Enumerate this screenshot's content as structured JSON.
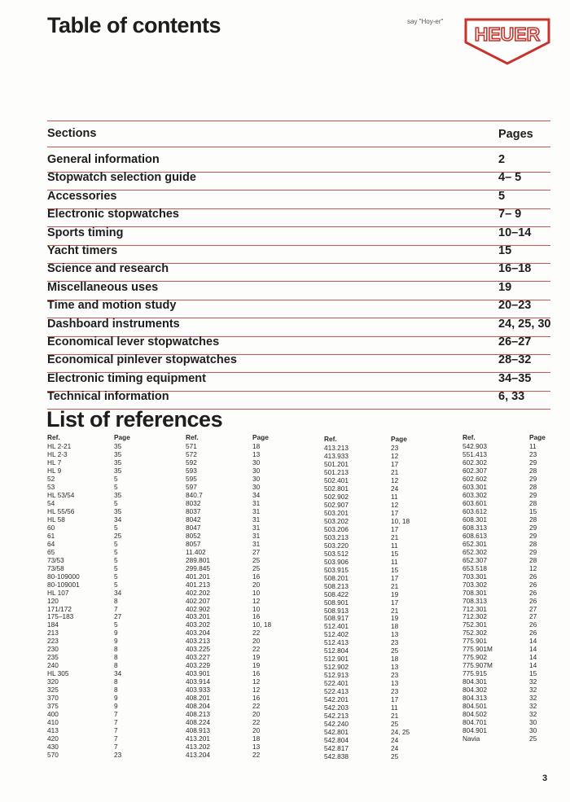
{
  "header": {
    "title": "Table of contents",
    "tagline": "say \"Hoy-er\"",
    "logo": "HEUER"
  },
  "sections": {
    "heading": "Sections",
    "pages_heading": "Pages",
    "rows": [
      [
        "General information",
        "2"
      ],
      [
        "Stopwatch selection guide",
        "4– 5"
      ],
      [
        "Accessories",
        "5"
      ],
      [
        "Electronic stopwatches",
        "7– 9"
      ],
      [
        "Sports timing",
        "10–14"
      ],
      [
        "Yacht timers",
        "15"
      ],
      [
        "Science and research",
        "16–18"
      ],
      [
        "Miscellaneous uses",
        "19"
      ],
      [
        "Time and motion study",
        "20–23"
      ],
      [
        "Dashboard instruments",
        "24, 25, 30"
      ],
      [
        "Economical lever stopwatches",
        "26–27"
      ],
      [
        "Economical pinlever stopwatches",
        "28–32"
      ],
      [
        "Electronic timing equipment",
        "34–35"
      ],
      [
        "Technical information",
        "6, 33"
      ]
    ]
  },
  "references": {
    "title": "List of references",
    "columns": [
      {
        "ref_heading": "Ref.",
        "page_heading": "Page",
        "rows": [
          [
            "HL 2-21",
            "35"
          ],
          [
            "HL 2-3",
            "35"
          ],
          [
            "HL 7",
            "35"
          ],
          [
            "HL 9",
            "35"
          ],
          [
            "52",
            "5"
          ],
          [
            "53",
            "5"
          ],
          [
            "HL 53/54",
            "35"
          ],
          [
            "54",
            "5"
          ],
          [
            "HL 55/56",
            "35"
          ],
          [
            "HL 58",
            "34"
          ],
          [
            "60",
            "5"
          ],
          [
            "61",
            "25"
          ],
          [
            "64",
            "5"
          ],
          [
            "65",
            "5"
          ],
          [
            "73/53",
            "5"
          ],
          [
            "73/58",
            "5"
          ],
          [
            "80-109000",
            "5"
          ],
          [
            "80-109001",
            "5"
          ],
          [
            "HL 107",
            "34"
          ],
          [
            "120",
            "8"
          ],
          [
            "171/172",
            "7"
          ],
          [
            "175–183",
            "27"
          ],
          [
            "184",
            "5"
          ],
          [
            "213",
            "9"
          ],
          [
            "223",
            "9"
          ],
          [
            "230",
            "8"
          ],
          [
            "235",
            "8"
          ],
          [
            "240",
            "8"
          ],
          [
            "HL 305",
            "34"
          ],
          [
            "320",
            "8"
          ],
          [
            "325",
            "8"
          ],
          [
            "370",
            "9"
          ],
          [
            "375",
            "9"
          ],
          [
            "400",
            "7"
          ],
          [
            "410",
            "7"
          ],
          [
            "413",
            "7"
          ],
          [
            "420",
            "7"
          ],
          [
            "430",
            "7"
          ],
          [
            "570",
            "23"
          ]
        ]
      },
      {
        "ref_heading": "Ref.",
        "page_heading": "Page",
        "rows": [
          [
            "571",
            "18"
          ],
          [
            "572",
            "13"
          ],
          [
            "592",
            "30"
          ],
          [
            "593",
            "30"
          ],
          [
            "595",
            "30"
          ],
          [
            "597",
            "30"
          ],
          [
            "840.7",
            "34"
          ],
          [
            "8032",
            "31"
          ],
          [
            "8037",
            "31"
          ],
          [
            "8042",
            "31"
          ],
          [
            "8047",
            "31"
          ],
          [
            "8052",
            "31"
          ],
          [
            "8057",
            "31"
          ],
          [
            "11.402",
            "27"
          ],
          [
            "289.801",
            "25"
          ],
          [
            "299.845",
            "25"
          ],
          [
            "401.201",
            "16"
          ],
          [
            "401.213",
            "20"
          ],
          [
            "402.202",
            "10"
          ],
          [
            "402.207",
            "12"
          ],
          [
            "402.902",
            "10"
          ],
          [
            "403.201",
            "16"
          ],
          [
            "403.202",
            "10, 18"
          ],
          [
            "403.204",
            "22"
          ],
          [
            "403.213",
            "20"
          ],
          [
            "403.225",
            "22"
          ],
          [
            "403.227",
            "19"
          ],
          [
            "403.229",
            "19"
          ],
          [
            "403.901",
            "16"
          ],
          [
            "403.914",
            "12"
          ],
          [
            "403.933",
            "12"
          ],
          [
            "408.201",
            "16"
          ],
          [
            "408.204",
            "22"
          ],
          [
            "408.213",
            "20"
          ],
          [
            "408.224",
            "22"
          ],
          [
            "408.913",
            "20"
          ],
          [
            "413.201",
            "18"
          ],
          [
            "413.202",
            "13"
          ],
          [
            "413.204",
            "22"
          ]
        ]
      },
      {
        "ref_heading": "Ref.",
        "page_heading": "Page",
        "rows": [
          [
            "413.213",
            "23"
          ],
          [
            "413.933",
            "12"
          ],
          [
            "501.201",
            "17"
          ],
          [
            "501.213",
            "21"
          ],
          [
            "502.401",
            "12"
          ],
          [
            "502.801",
            "24"
          ],
          [
            "502.902",
            "11"
          ],
          [
            "502.907",
            "12"
          ],
          [
            "503.201",
            "17"
          ],
          [
            "503.202",
            "10, 18"
          ],
          [
            "503.206",
            "17"
          ],
          [
            "503.213",
            "21"
          ],
          [
            "503.220",
            "11"
          ],
          [
            "503.512",
            "15"
          ],
          [
            "503.906",
            "11"
          ],
          [
            "503.915",
            "15"
          ],
          [
            "508.201",
            "17"
          ],
          [
            "508.213",
            "21"
          ],
          [
            "508.422",
            "19"
          ],
          [
            "508.901",
            "17"
          ],
          [
            "508.913",
            "21"
          ],
          [
            "508.917",
            "19"
          ],
          [
            "512.401",
            "18"
          ],
          [
            "512.402",
            "13"
          ],
          [
            "512.413",
            "23"
          ],
          [
            "512.804",
            "25"
          ],
          [
            "512.901",
            "18"
          ],
          [
            "512.902",
            "13"
          ],
          [
            "512.913",
            "23"
          ],
          [
            "522.401",
            "13"
          ],
          [
            "522.413",
            "23"
          ],
          [
            "542.201",
            "17"
          ],
          [
            "542.203",
            "11"
          ],
          [
            "542.213",
            "21"
          ],
          [
            "542.240",
            "25"
          ],
          [
            "542.801",
            "24, 25"
          ],
          [
            "542.804",
            "24"
          ],
          [
            "542.817",
            "24"
          ],
          [
            "542.838",
            "25"
          ]
        ]
      },
      {
        "ref_heading": "Ref.",
        "page_heading": "Page",
        "rows": [
          [
            "542.903",
            "11"
          ],
          [
            "551.413",
            "23"
          ],
          [
            "602.302",
            "29"
          ],
          [
            "602.307",
            "28"
          ],
          [
            "602.602",
            "29"
          ],
          [
            "603.301",
            "28"
          ],
          [
            "603.302",
            "29"
          ],
          [
            "603.601",
            "28"
          ],
          [
            "603.612",
            "15"
          ],
          [
            "608.301",
            "28"
          ],
          [
            "608.313",
            "29"
          ],
          [
            "608.613",
            "29"
          ],
          [
            "652.301",
            "28"
          ],
          [
            "652.302",
            "29"
          ],
          [
            "652.307",
            "28"
          ],
          [
            "653.518",
            "12"
          ],
          [
            "703.301",
            "26"
          ],
          [
            "703.302",
            "26"
          ],
          [
            "708.301",
            "26"
          ],
          [
            "708.313",
            "26"
          ],
          [
            "712.301",
            "27"
          ],
          [
            "712.302",
            "27"
          ],
          [
            "752.301",
            "26"
          ],
          [
            "752.302",
            "26"
          ],
          [
            "775.901",
            "14"
          ],
          [
            "775.901M",
            "14"
          ],
          [
            "775.902",
            "14"
          ],
          [
            "775.907M",
            "14"
          ],
          [
            "775.915",
            "15"
          ],
          [
            "804.301",
            "32"
          ],
          [
            "804.302",
            "32"
          ],
          [
            "804.313",
            "32"
          ],
          [
            "804.501",
            "32"
          ],
          [
            "804.502",
            "32"
          ],
          [
            "804.701",
            "30"
          ],
          [
            "804.901",
            "30"
          ],
          [
            "Navia",
            "25"
          ]
        ]
      }
    ]
  },
  "page_number": "3"
}
